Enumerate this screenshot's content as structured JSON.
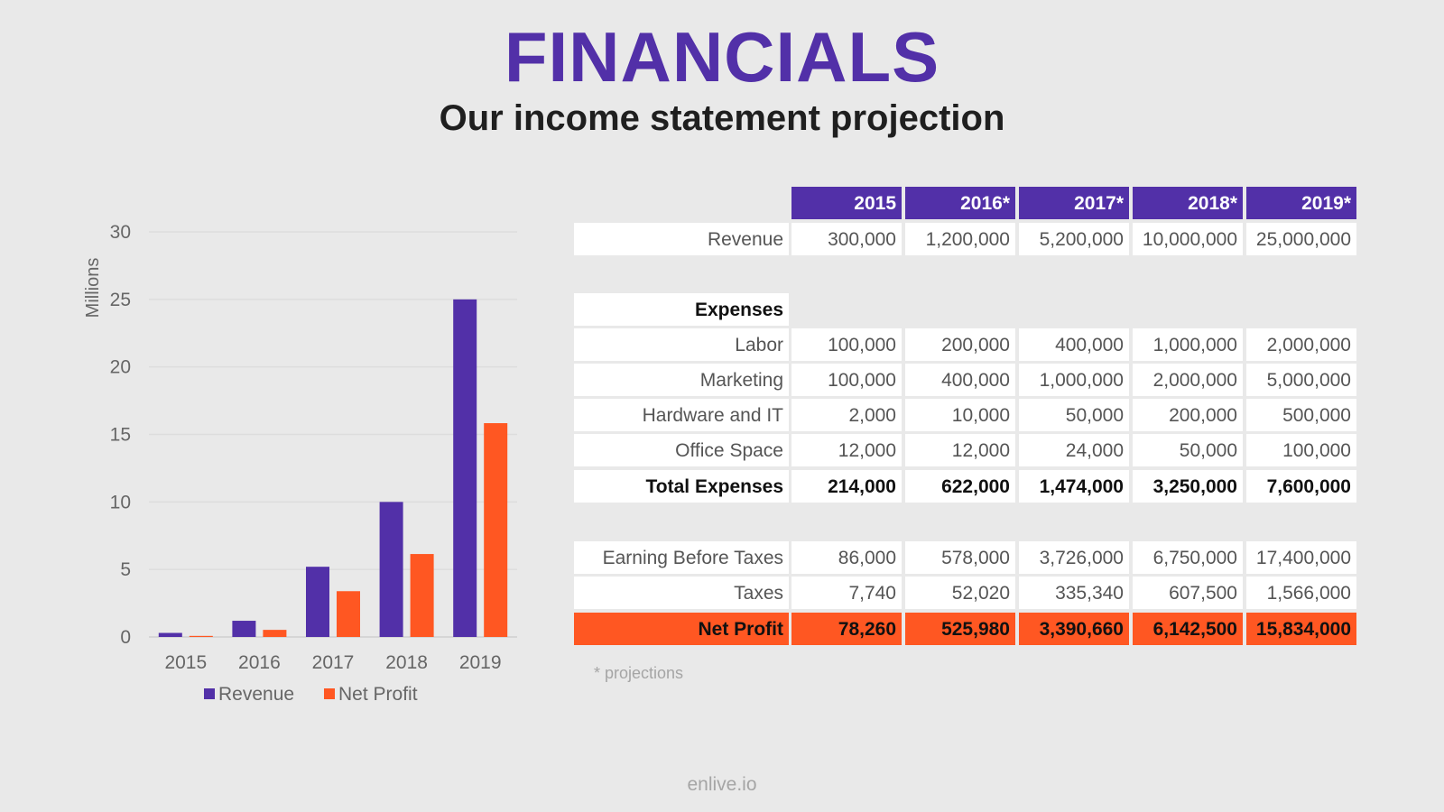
{
  "header": {
    "title": "FINANCIALS",
    "subtitle": "Our income statement projection"
  },
  "colors": {
    "revenue": "#5230a8",
    "net_profit": "#ff5722",
    "background": "#e9e9e9"
  },
  "chart_data": {
    "type": "bar",
    "categories": [
      "2015",
      "2016",
      "2017",
      "2018",
      "2019"
    ],
    "series": [
      {
        "name": "Revenue",
        "values": [
          0.3,
          1.2,
          5.2,
          10.0,
          25.0
        ]
      },
      {
        "name": "Net Profit",
        "values": [
          0.07826,
          0.52598,
          3.39066,
          6.1425,
          15.834
        ]
      }
    ],
    "title": "",
    "xlabel": "",
    "ylabel": "Millions",
    "ylim": [
      0,
      30
    ],
    "yticks": [
      "0",
      "5",
      "10",
      "15",
      "20",
      "25",
      "30"
    ],
    "grid": true,
    "legend": "bottom"
  },
  "table": {
    "columns": [
      "2015",
      "2016*",
      "2017*",
      "2018*",
      "2019*"
    ],
    "rows": [
      {
        "label": "Revenue",
        "values": [
          "300,000",
          "1,200,000",
          "5,200,000",
          "10,000,000",
          "25,000,000"
        ],
        "style": "normal"
      },
      {
        "label": "Expenses",
        "values": [],
        "style": "section"
      },
      {
        "label": "Labor",
        "values": [
          "100,000",
          "200,000",
          "400,000",
          "1,000,000",
          "2,000,000"
        ],
        "style": "normal"
      },
      {
        "label": "Marketing",
        "values": [
          "100,000",
          "400,000",
          "1,000,000",
          "2,000,000",
          "5,000,000"
        ],
        "style": "normal"
      },
      {
        "label": "Hardware and IT",
        "values": [
          "2,000",
          "10,000",
          "50,000",
          "200,000",
          "500,000"
        ],
        "style": "normal"
      },
      {
        "label": "Office Space",
        "values": [
          "12,000",
          "12,000",
          "24,000",
          "50,000",
          "100,000"
        ],
        "style": "normal"
      },
      {
        "label": "Total Expenses",
        "values": [
          "214,000",
          "622,000",
          "1,474,000",
          "3,250,000",
          "7,600,000"
        ],
        "style": "bold"
      },
      {
        "label": "Earning Before Taxes",
        "values": [
          "86,000",
          "578,000",
          "3,726,000",
          "6,750,000",
          "17,400,000"
        ],
        "style": "normal"
      },
      {
        "label": "Taxes",
        "values": [
          "7,740",
          "52,020",
          "335,340",
          "607,500",
          "1,566,000"
        ],
        "style": "normal"
      },
      {
        "label": "Net Profit",
        "values": [
          "78,260",
          "525,980",
          "3,390,660",
          "6,142,500",
          "15,834,000"
        ],
        "style": "net"
      }
    ],
    "footnote": "* projections"
  },
  "footer": {
    "text": "enlive.io"
  }
}
